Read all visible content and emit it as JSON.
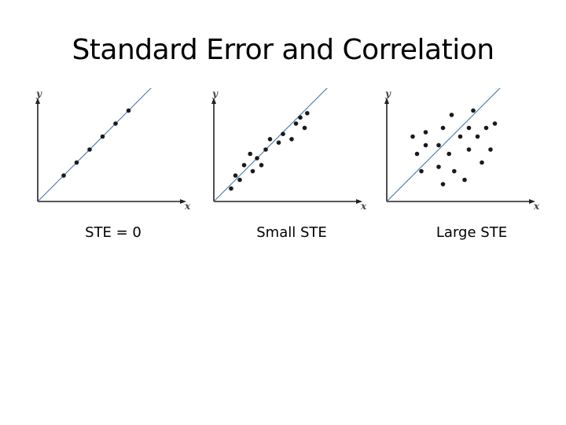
{
  "slide": {
    "title": "Standard Error and Correlation"
  },
  "panels": [
    {
      "caption": "STE = 0",
      "y_axis_label": "y",
      "x_axis_label": "x",
      "points": [
        [
          3,
          3
        ],
        [
          4.5,
          4.5
        ],
        [
          6,
          6
        ],
        [
          7.5,
          7.5
        ],
        [
          9,
          9
        ],
        [
          10.5,
          10.5
        ]
      ],
      "fit_line": [
        [
          0,
          0
        ],
        [
          14,
          14
        ]
      ]
    },
    {
      "caption": "Small STE",
      "y_axis_label": "y",
      "x_axis_label": "x",
      "points": [
        [
          2,
          1.5
        ],
        [
          2.5,
          3
        ],
        [
          3,
          2.5
        ],
        [
          3.5,
          4.2
        ],
        [
          4.5,
          3.5
        ],
        [
          5,
          5
        ],
        [
          5.5,
          4.2
        ],
        [
          6,
          6
        ],
        [
          6.5,
          7.2
        ],
        [
          7.5,
          6.8
        ],
        [
          8,
          7.8
        ],
        [
          9,
          7.2
        ],
        [
          9.5,
          9
        ],
        [
          10.5,
          8.5
        ],
        [
          10,
          9.7
        ],
        [
          10.8,
          10.2
        ],
        [
          4.2,
          5.5
        ]
      ],
      "fit_line": [
        [
          0,
          0
        ],
        [
          14,
          14
        ]
      ]
    },
    {
      "caption": "Large STE",
      "y_axis_label": "y",
      "x_axis_label": "x",
      "points": [
        [
          3,
          7.5
        ],
        [
          3.5,
          5.5
        ],
        [
          4,
          3.5
        ],
        [
          4.5,
          8
        ],
        [
          4.5,
          6.5
        ],
        [
          6,
          6.5
        ],
        [
          6,
          4
        ],
        [
          6.5,
          8.5
        ],
        [
          6.5,
          2
        ],
        [
          7.2,
          5.5
        ],
        [
          7.5,
          10
        ],
        [
          7.8,
          3.5
        ],
        [
          8.5,
          7.5
        ],
        [
          9,
          2.5
        ],
        [
          9.5,
          6
        ],
        [
          10,
          10.5
        ],
        [
          10.5,
          7.5
        ],
        [
          11,
          4.5
        ],
        [
          11.5,
          8.5
        ],
        [
          12,
          6
        ],
        [
          12.5,
          9
        ],
        [
          9.5,
          8.5
        ]
      ],
      "fit_line": [
        [
          0,
          0
        ],
        [
          14,
          14
        ]
      ]
    }
  ]
}
